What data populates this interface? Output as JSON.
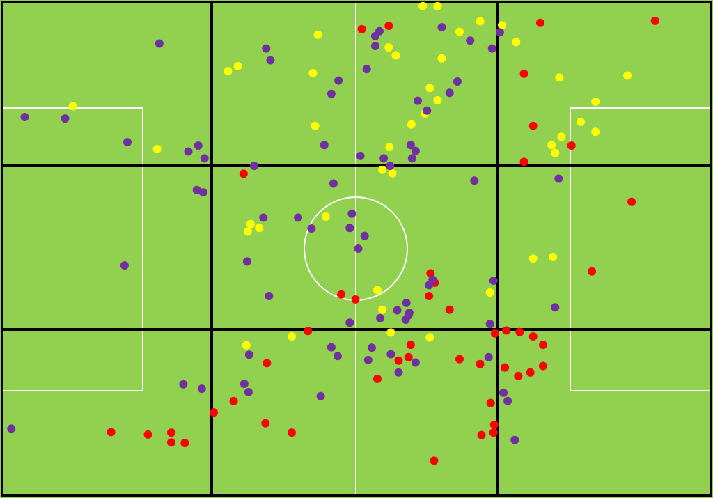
{
  "colors": {
    "pitch": "#92d050",
    "pitch_lines": "#ffffff",
    "zone_lines": "#000000",
    "red": "#ff0000",
    "yellow": "#ffff00",
    "purple": "#7030a0"
  },
  "chart_data": {
    "type": "scatter",
    "title": "",
    "xlabel": "",
    "ylabel": "",
    "xlim": [
      0,
      100
    ],
    "ylim": [
      0,
      100
    ],
    "grid": "3x3 zones",
    "legend": "none",
    "series": [
      {
        "color": "red",
        "points": [
          [
            50.7,
            94.5
          ],
          [
            54.5,
            95.2
          ],
          [
            75.9,
            95.8
          ],
          [
            92.1,
            96.2
          ],
          [
            73.6,
            85.5
          ],
          [
            74.9,
            74.9
          ],
          [
            80.3,
            70.9
          ],
          [
            73.6,
            67.6
          ],
          [
            88.8,
            59.5
          ],
          [
            34.0,
            65.2
          ],
          [
            83.2,
            45.4
          ],
          [
            60.4,
            45.0
          ],
          [
            61.0,
            43.1
          ],
          [
            60.2,
            40.4
          ],
          [
            47.8,
            40.7
          ],
          [
            49.8,
            39.7
          ],
          [
            63.1,
            37.6
          ],
          [
            43.1,
            33.3
          ],
          [
            69.5,
            32.8
          ],
          [
            71.1,
            33.4
          ],
          [
            73.0,
            33.1
          ],
          [
            74.9,
            32.2
          ],
          [
            76.3,
            30.5
          ],
          [
            57.6,
            30.5
          ],
          [
            57.3,
            28.0
          ],
          [
            55.9,
            27.3
          ],
          [
            37.3,
            26.8
          ],
          [
            64.5,
            27.6
          ],
          [
            67.4,
            26.6
          ],
          [
            70.9,
            25.9
          ],
          [
            74.5,
            24.9
          ],
          [
            76.3,
            26.2
          ],
          [
            52.9,
            23.6
          ],
          [
            72.8,
            24.2
          ],
          [
            29.8,
            16.8
          ],
          [
            32.6,
            19.1
          ],
          [
            68.9,
            18.7
          ],
          [
            69.4,
            14.3
          ],
          [
            67.6,
            12.2
          ],
          [
            69.3,
            12.7
          ],
          [
            15.3,
            12.8
          ],
          [
            20.5,
            12.3
          ],
          [
            23.8,
            12.7
          ],
          [
            23.8,
            10.7
          ],
          [
            25.7,
            10.6
          ],
          [
            37.1,
            14.6
          ],
          [
            40.8,
            12.7
          ],
          [
            60.9,
            7.0
          ]
        ]
      },
      {
        "color": "yellow",
        "points": [
          [
            59.3,
            99.2
          ],
          [
            61.4,
            99.2
          ],
          [
            44.5,
            93.4
          ],
          [
            64.5,
            94.0
          ],
          [
            67.4,
            96.1
          ],
          [
            70.5,
            95.3
          ],
          [
            72.5,
            91.9
          ],
          [
            54.5,
            90.8
          ],
          [
            55.5,
            89.2
          ],
          [
            62.0,
            88.6
          ],
          [
            31.8,
            86.0
          ],
          [
            33.2,
            87.0
          ],
          [
            43.8,
            85.6
          ],
          [
            78.6,
            84.7
          ],
          [
            88.2,
            85.1
          ],
          [
            60.3,
            82.6
          ],
          [
            61.4,
            80.1
          ],
          [
            83.7,
            79.8
          ],
          [
            59.6,
            77.4
          ],
          [
            57.7,
            75.2
          ],
          [
            81.6,
            75.7
          ],
          [
            83.7,
            73.7
          ],
          [
            9.9,
            78.9
          ],
          [
            44.1,
            74.9
          ],
          [
            78.9,
            72.7
          ],
          [
            77.5,
            71.0
          ],
          [
            78.0,
            69.4
          ],
          [
            21.8,
            70.2
          ],
          [
            54.6,
            70.6
          ],
          [
            53.6,
            66.0
          ],
          [
            55.0,
            65.3
          ],
          [
            45.6,
            56.5
          ],
          [
            35.0,
            55.0
          ],
          [
            36.2,
            54.2
          ],
          [
            34.6,
            53.5
          ],
          [
            74.9,
            48.0
          ],
          [
            77.7,
            48.3
          ],
          [
            52.9,
            41.6
          ],
          [
            68.8,
            41.1
          ],
          [
            53.6,
            37.6
          ],
          [
            54.8,
            33.0
          ],
          [
            40.8,
            32.2
          ],
          [
            60.3,
            32.0
          ],
          [
            34.4,
            30.4
          ]
        ]
      },
      {
        "color": "purple",
        "points": [
          [
            22.1,
            91.6
          ],
          [
            37.2,
            90.6
          ],
          [
            37.8,
            88.2
          ],
          [
            51.4,
            86.4
          ],
          [
            52.6,
            93.1
          ],
          [
            53.2,
            94.1
          ],
          [
            52.6,
            91.1
          ],
          [
            62.0,
            94.9
          ],
          [
            70.2,
            93.9
          ],
          [
            66.0,
            92.2
          ],
          [
            69.1,
            90.6
          ],
          [
            47.4,
            84.1
          ],
          [
            46.4,
            81.4
          ],
          [
            64.2,
            83.9
          ],
          [
            63.1,
            81.6
          ],
          [
            58.6,
            80.0
          ],
          [
            59.9,
            78.0
          ],
          [
            3.1,
            76.7
          ],
          [
            8.8,
            76.4
          ],
          [
            17.6,
            71.6
          ],
          [
            45.4,
            71.0
          ],
          [
            57.6,
            71.0
          ],
          [
            58.3,
            69.8
          ],
          [
            57.8,
            68.3
          ],
          [
            26.2,
            69.7
          ],
          [
            27.6,
            70.9
          ],
          [
            28.5,
            68.3
          ],
          [
            50.5,
            68.8
          ],
          [
            53.8,
            68.3
          ],
          [
            54.7,
            66.8
          ],
          [
            35.5,
            66.8
          ],
          [
            46.7,
            63.2
          ],
          [
            66.6,
            63.8
          ],
          [
            78.5,
            64.2
          ],
          [
            27.4,
            61.9
          ],
          [
            28.3,
            61.4
          ],
          [
            41.7,
            56.3
          ],
          [
            36.8,
            56.3
          ],
          [
            43.6,
            54.1
          ],
          [
            49.3,
            57.1
          ],
          [
            49.0,
            54.2
          ],
          [
            51.1,
            52.6
          ],
          [
            50.2,
            50.0
          ],
          [
            17.2,
            46.6
          ],
          [
            34.5,
            47.4
          ],
          [
            69.3,
            43.5
          ],
          [
            60.2,
            42.6
          ],
          [
            60.7,
            43.7
          ],
          [
            37.6,
            40.4
          ],
          [
            57.0,
            39.0
          ],
          [
            78.0,
            38.1
          ],
          [
            55.7,
            37.5
          ],
          [
            57.3,
            36.5
          ],
          [
            57.4,
            37.0
          ],
          [
            53.3,
            35.9
          ],
          [
            56.9,
            35.6
          ],
          [
            49.0,
            35.0
          ],
          [
            68.8,
            34.7
          ],
          [
            34.8,
            28.5
          ],
          [
            46.4,
            30.0
          ],
          [
            47.3,
            28.2
          ],
          [
            52.1,
            29.9
          ],
          [
            51.6,
            27.4
          ],
          [
            54.8,
            28.6
          ],
          [
            58.3,
            26.9
          ],
          [
            68.6,
            28.0
          ],
          [
            55.9,
            24.9
          ],
          [
            25.5,
            22.5
          ],
          [
            28.1,
            21.6
          ],
          [
            34.1,
            22.6
          ],
          [
            34.7,
            20.9
          ],
          [
            44.9,
            20.1
          ],
          [
            70.7,
            20.8
          ],
          [
            71.3,
            19.1
          ],
          [
            1.2,
            13.5
          ],
          [
            72.3,
            11.2
          ]
        ]
      }
    ]
  }
}
